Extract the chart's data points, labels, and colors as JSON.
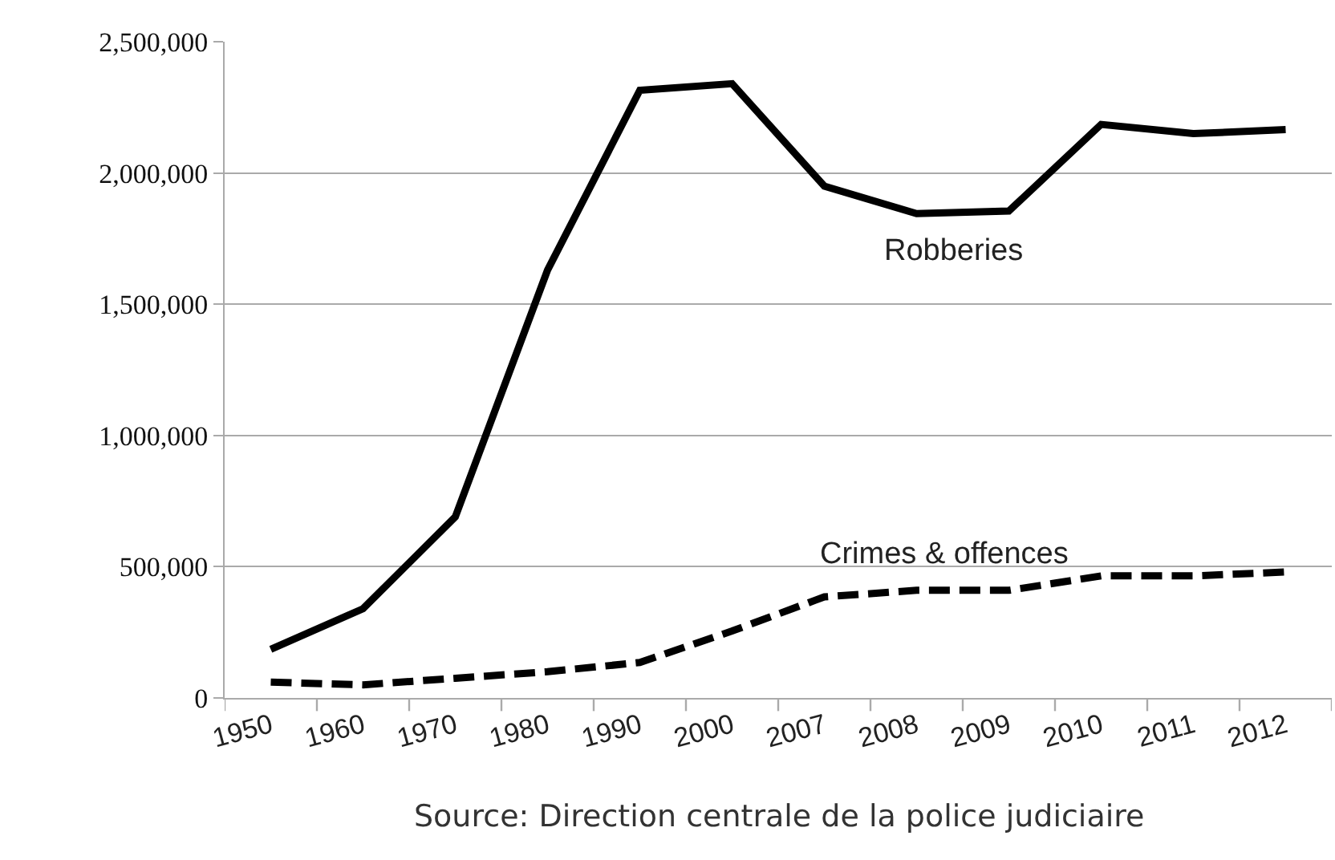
{
  "chart_data": {
    "type": "line",
    "categories": [
      "1950",
      "1960",
      "1970",
      "1980",
      "1990",
      "2000",
      "2007",
      "2008",
      "2009",
      "2010",
      "2011",
      "2012"
    ],
    "series": [
      {
        "name": "Robberies",
        "color": "#000000",
        "line_style": "solid",
        "values": [
          185000,
          340000,
          690000,
          1630000,
          2315000,
          2340000,
          1950000,
          1845000,
          1855000,
          2185000,
          2150000,
          2165000
        ]
      },
      {
        "name": "Crimes & offences",
        "color": "#000000",
        "line_style": "dashed",
        "values": [
          60000,
          50000,
          75000,
          100000,
          135000,
          255000,
          385000,
          410000,
          410000,
          465000,
          465000,
          480000
        ]
      }
    ],
    "ylim": [
      0,
      2500000
    ],
    "yticks": [
      {
        "value": 0,
        "label": "0"
      },
      {
        "value": 500000,
        "label": "500,000"
      },
      {
        "value": 1000000,
        "label": "1,000,000"
      },
      {
        "value": 1500000,
        "label": "1,500,000"
      },
      {
        "value": 2000000,
        "label": "2,000,000"
      },
      {
        "value": 2500000,
        "label": "2,500,000"
      }
    ],
    "grid": "y",
    "legend": false,
    "marker": "none",
    "annotations": [
      "Source: Direction centrale de la police judiciaire"
    ]
  }
}
